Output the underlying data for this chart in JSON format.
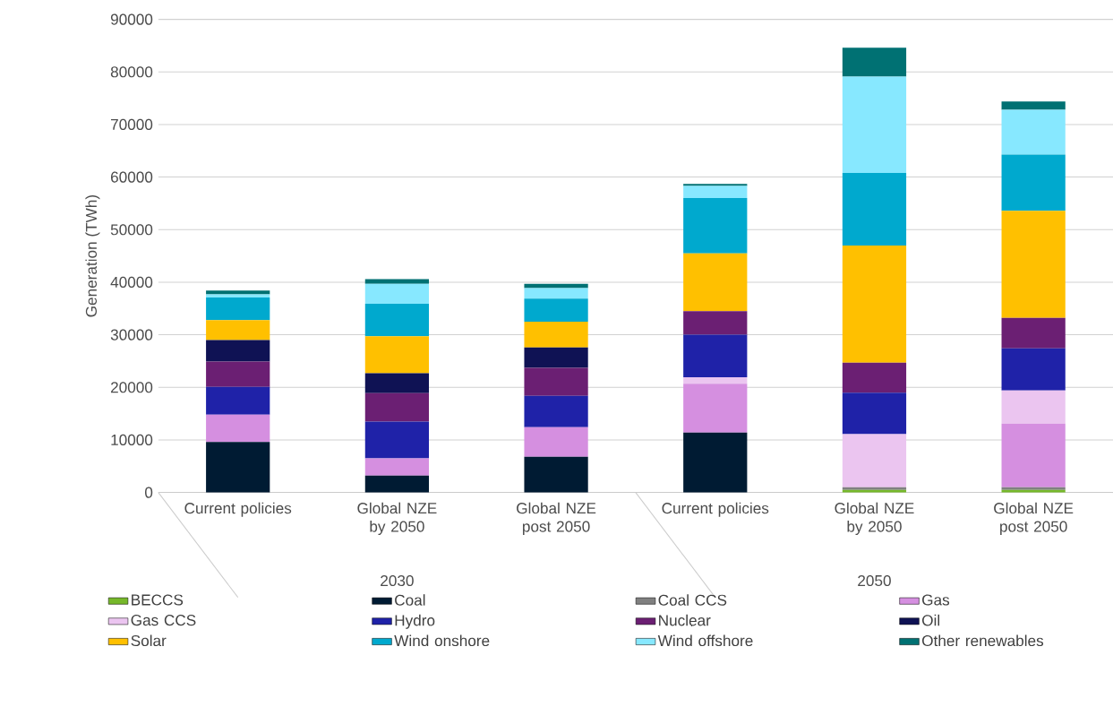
{
  "chart_data": {
    "type": "bar",
    "stacked": true,
    "ylabel": "Generation (TWh)",
    "categories": [
      "Current policies",
      "Global NZE by 2050",
      "Global NZE post 2050",
      "Current policies",
      "Global NZE by 2050",
      "Global NZE post 2050"
    ],
    "annotations": [
      "2030",
      "2050"
    ],
    "ylim": [
      0,
      90000
    ],
    "yticks": [
      0,
      10000,
      20000,
      30000,
      40000,
      50000,
      60000,
      70000,
      80000,
      90000
    ],
    "grid": "y",
    "legend": "bottom",
    "series": [
      {
        "name": "BECCS",
        "color": "#76b82a",
        "values": [
          0,
          0,
          0,
          0,
          500,
          500
        ]
      },
      {
        "name": "Coal",
        "color": "#001b33",
        "values": [
          9600,
          3200,
          6800,
          11400,
          0,
          0
        ]
      },
      {
        "name": "Coal CCS",
        "color": "#808080",
        "values": [
          0,
          0,
          0,
          0,
          500,
          500
        ]
      },
      {
        "name": "Gas",
        "color": "#d58fe0",
        "values": [
          5200,
          3300,
          5600,
          9300,
          0,
          12100
        ]
      },
      {
        "name": "Gas CCS",
        "color": "#ebc5f0",
        "values": [
          0,
          0,
          0,
          1200,
          10100,
          6300
        ]
      },
      {
        "name": "Hydro",
        "color": "#1f22a8",
        "values": [
          5300,
          7000,
          6000,
          8100,
          7900,
          8000
        ]
      },
      {
        "name": "Nuclear",
        "color": "#6b1f73",
        "values": [
          4800,
          5400,
          5300,
          4500,
          5700,
          5800
        ]
      },
      {
        "name": "Oil",
        "color": "#0f1254",
        "values": [
          4100,
          3800,
          3900,
          0,
          0,
          0
        ]
      },
      {
        "name": "Solar",
        "color": "#ffc000",
        "values": [
          3800,
          7000,
          4900,
          11000,
          22300,
          20400
        ]
      },
      {
        "name": "Wind onshore",
        "color": "#00a9ce",
        "values": [
          4300,
          6200,
          4400,
          10500,
          13800,
          10700
        ]
      },
      {
        "name": "Wind offshore",
        "color": "#87e8ff",
        "values": [
          600,
          3800,
          2000,
          2300,
          18300,
          8500
        ]
      },
      {
        "name": "Other renewables",
        "color": "#007173",
        "values": [
          700,
          900,
          800,
          400,
          5500,
          1600
        ]
      }
    ]
  }
}
